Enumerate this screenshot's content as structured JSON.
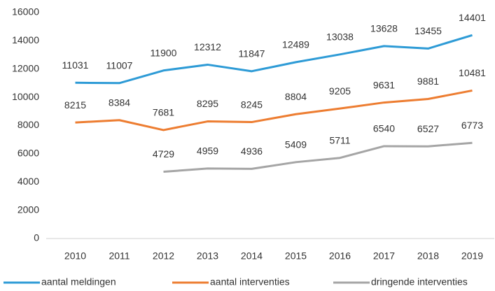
{
  "chart_data": {
    "type": "line",
    "categories": [
      "2010",
      "2011",
      "2012",
      "2013",
      "2014",
      "2015",
      "2016",
      "2017",
      "2018",
      "2019"
    ],
    "series": [
      {
        "name": "aantal meldingen",
        "color": "#2e9bd6",
        "values": [
          11031,
          11007,
          11900,
          12312,
          11847,
          12489,
          13038,
          13628,
          13455,
          14401
        ]
      },
      {
        "name": "aantal interventies",
        "color": "#ed7d31",
        "values": [
          8215,
          8384,
          7681,
          8295,
          8245,
          8804,
          9205,
          9631,
          9881,
          10481
        ]
      },
      {
        "name": "dringende interventies",
        "color": "#a5a5a5",
        "values": [
          null,
          null,
          4729,
          4959,
          4936,
          5409,
          5711,
          6540,
          6527,
          6773
        ]
      }
    ],
    "ylim": [
      0,
      16000
    ],
    "yticks": [
      0,
      2000,
      4000,
      6000,
      8000,
      10000,
      12000,
      14000,
      16000
    ],
    "grid": false,
    "legend": "bottom"
  }
}
